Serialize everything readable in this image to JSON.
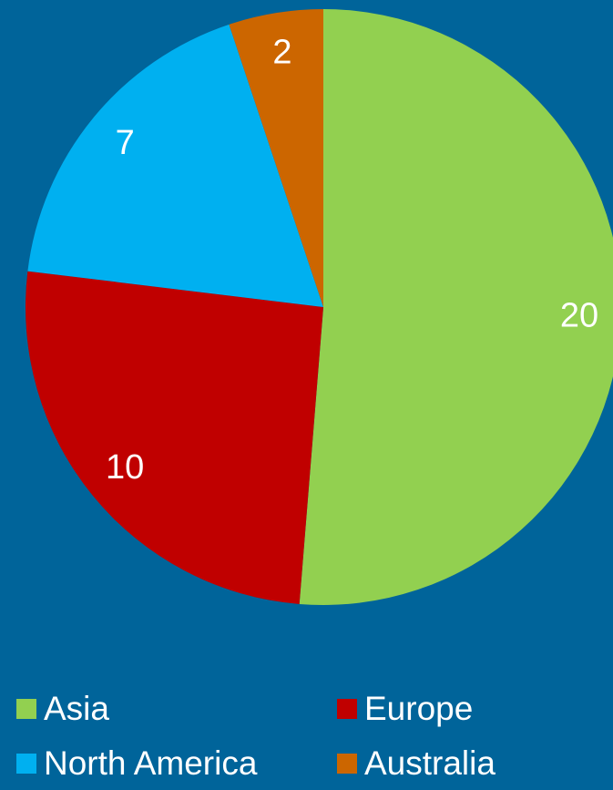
{
  "chart_data": {
    "type": "pie",
    "categories": [
      "Asia",
      "Europe",
      "North America",
      "Australia"
    ],
    "values": [
      20,
      10,
      7,
      2
    ],
    "colors": [
      "#92d050",
      "#c00000",
      "#00b0f0",
      "#cc6600"
    ],
    "legend": "bottom"
  }
}
